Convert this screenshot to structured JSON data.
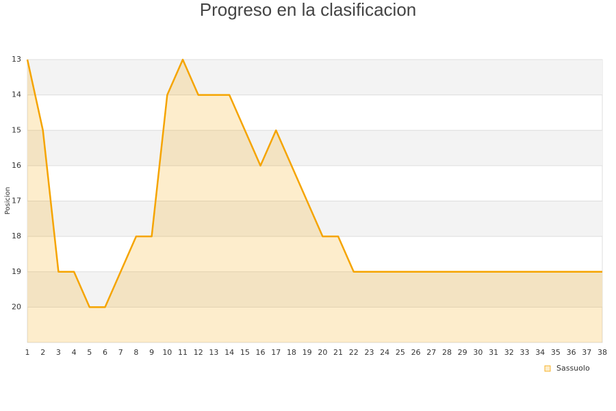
{
  "chart_data": {
    "type": "area",
    "title": "Progreso en la clasificacion",
    "y_label": "Posicion",
    "x": [
      1,
      2,
      3,
      4,
      5,
      6,
      7,
      8,
      9,
      10,
      11,
      12,
      13,
      14,
      15,
      16,
      17,
      18,
      19,
      20,
      21,
      22,
      23,
      24,
      25,
      26,
      27,
      28,
      29,
      30,
      31,
      32,
      33,
      34,
      35,
      36,
      37,
      38
    ],
    "series": [
      {
        "name": "Sassuolo",
        "color": "#f5a400",
        "values": [
          13,
          15,
          19,
          19,
          20,
          20,
          19,
          18,
          18,
          14,
          13,
          14,
          14,
          14,
          15,
          16,
          15,
          16,
          17,
          18,
          18,
          19,
          19,
          19,
          19,
          19,
          19,
          19,
          19,
          19,
          19,
          19,
          19,
          19,
          19,
          19,
          19,
          19
        ]
      }
    ],
    "xlim": [
      1,
      38
    ],
    "xticks": [
      1,
      2,
      3,
      4,
      5,
      6,
      7,
      8,
      9,
      10,
      11,
      12,
      13,
      14,
      15,
      16,
      17,
      18,
      19,
      20,
      21,
      22,
      23,
      24,
      25,
      26,
      27,
      28,
      29,
      30,
      31,
      32,
      33,
      34,
      35,
      36,
      37,
      38
    ],
    "ylim": [
      13,
      21
    ],
    "yticks": [
      13,
      14,
      15,
      16,
      17,
      18,
      19,
      20
    ],
    "y_inverted": true,
    "grid": true,
    "legend": "bottom-right"
  }
}
